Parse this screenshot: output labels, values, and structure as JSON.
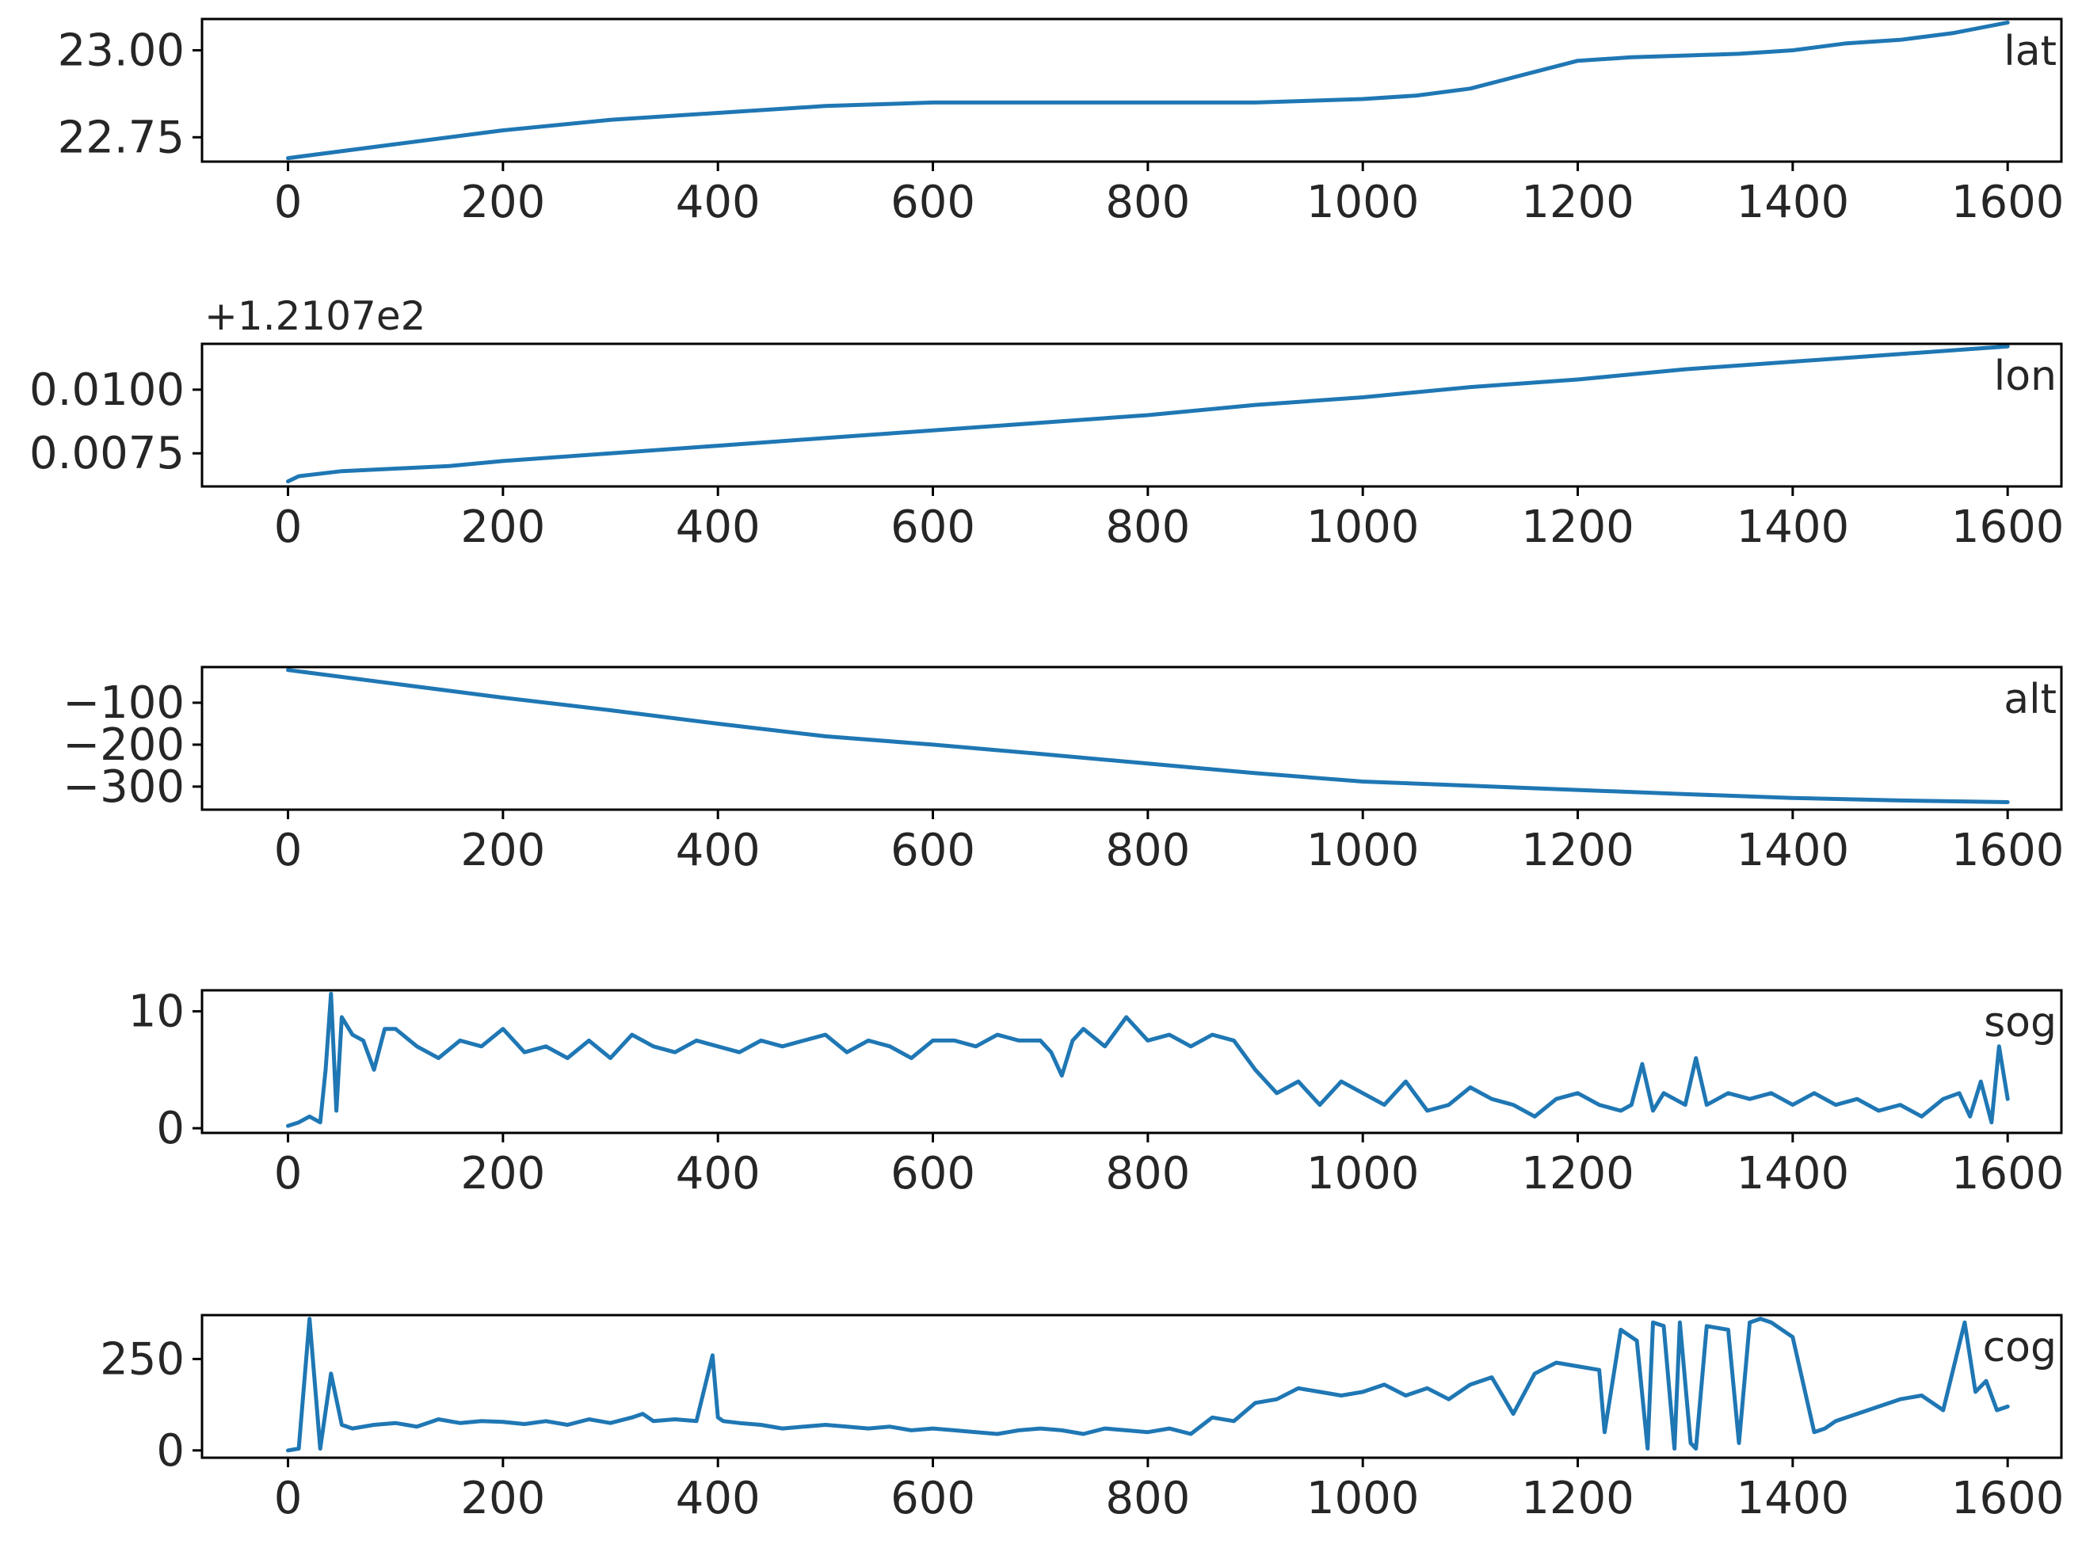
{
  "chart_data": [
    {
      "type": "line",
      "legend": "lat",
      "color": "#1f77b4",
      "xlim": [
        -80,
        1650
      ],
      "ylim": [
        22.68,
        23.09
      ],
      "xticks": [
        0,
        200,
        400,
        600,
        800,
        1000,
        1200,
        1400,
        1600
      ],
      "xtick_labels": [
        "0",
        "200",
        "400",
        "600",
        "800",
        "1000",
        "1200",
        "1400",
        "1600"
      ],
      "yticks": [
        22.75,
        23.0
      ],
      "ytick_labels": [
        "22.75",
        "23.00"
      ],
      "offset_text": "",
      "x": [
        0,
        100,
        200,
        300,
        400,
        500,
        600,
        700,
        800,
        900,
        1000,
        1050,
        1100,
        1150,
        1200,
        1250,
        1300,
        1350,
        1400,
        1450,
        1500,
        1550,
        1600
      ],
      "y": [
        22.69,
        22.73,
        22.77,
        22.8,
        22.82,
        22.84,
        22.85,
        22.85,
        22.85,
        22.85,
        22.86,
        22.87,
        22.89,
        22.93,
        22.97,
        22.98,
        22.985,
        22.99,
        23.0,
        23.02,
        23.03,
        23.05,
        23.08
      ]
    },
    {
      "type": "line",
      "legend": "lon",
      "color": "#1f77b4",
      "xlim": [
        -80,
        1650
      ],
      "ylim": [
        0.0062,
        0.0118
      ],
      "xticks": [
        0,
        200,
        400,
        600,
        800,
        1000,
        1200,
        1400,
        1600
      ],
      "xtick_labels": [
        "0",
        "200",
        "400",
        "600",
        "800",
        "1000",
        "1200",
        "1400",
        "1600"
      ],
      "yticks": [
        0.0075,
        0.01
      ],
      "ytick_labels": [
        "0.0075",
        "0.0100"
      ],
      "offset_text": "+1.2107e2",
      "x": [
        0,
        10,
        50,
        100,
        150,
        200,
        300,
        400,
        500,
        600,
        700,
        800,
        900,
        1000,
        1100,
        1200,
        1300,
        1400,
        1500,
        1600
      ],
      "y": [
        0.0064,
        0.0066,
        0.0068,
        0.0069,
        0.007,
        0.0072,
        0.0075,
        0.0078,
        0.0081,
        0.0084,
        0.0087,
        0.009,
        0.0094,
        0.0097,
        0.0101,
        0.0104,
        0.0108,
        0.0111,
        0.0114,
        0.0117
      ]
    },
    {
      "type": "line",
      "legend": "alt",
      "color": "#1f77b4",
      "xlim": [
        -80,
        1650
      ],
      "ylim": [
        -355,
        -15
      ],
      "xticks": [
        0,
        200,
        400,
        600,
        800,
        1000,
        1200,
        1400,
        1600
      ],
      "xtick_labels": [
        "0",
        "200",
        "400",
        "600",
        "800",
        "1000",
        "1200",
        "1400",
        "1600"
      ],
      "yticks": [
        -300,
        -200,
        -100
      ],
      "ytick_labels": [
        "−300",
        "−200",
        "−100"
      ],
      "offset_text": "",
      "x": [
        0,
        100,
        200,
        300,
        400,
        500,
        600,
        700,
        800,
        900,
        1000,
        1100,
        1200,
        1300,
        1400,
        1500,
        1600
      ],
      "y": [
        -22,
        -55,
        -88,
        -118,
        -150,
        -180,
        -200,
        -222,
        -245,
        -268,
        -288,
        -298,
        -308,
        -318,
        -327,
        -333,
        -337
      ]
    },
    {
      "type": "line",
      "legend": "sog",
      "color": "#1f77b4",
      "xlim": [
        -80,
        1650
      ],
      "ylim": [
        -0.4,
        11.8
      ],
      "xticks": [
        0,
        200,
        400,
        600,
        800,
        1000,
        1200,
        1400,
        1600
      ],
      "xtick_labels": [
        "0",
        "200",
        "400",
        "600",
        "800",
        "1000",
        "1200",
        "1400",
        "1600"
      ],
      "yticks": [
        0,
        10
      ],
      "ytick_labels": [
        "0",
        "10"
      ],
      "offset_text": "",
      "x": [
        0,
        10,
        20,
        30,
        35,
        40,
        45,
        50,
        60,
        70,
        80,
        90,
        100,
        120,
        140,
        160,
        180,
        200,
        220,
        240,
        260,
        280,
        300,
        320,
        340,
        360,
        380,
        400,
        420,
        440,
        460,
        480,
        500,
        520,
        540,
        560,
        580,
        600,
        620,
        640,
        660,
        680,
        700,
        710,
        720,
        730,
        740,
        760,
        780,
        800,
        820,
        840,
        860,
        880,
        900,
        920,
        940,
        960,
        980,
        1000,
        1020,
        1040,
        1060,
        1080,
        1100,
        1120,
        1140,
        1160,
        1180,
        1200,
        1220,
        1240,
        1250,
        1260,
        1270,
        1280,
        1300,
        1310,
        1320,
        1330,
        1340,
        1360,
        1380,
        1400,
        1420,
        1440,
        1460,
        1480,
        1500,
        1520,
        1540,
        1555,
        1565,
        1575,
        1585,
        1592,
        1600
      ],
      "y": [
        0.2,
        0.5,
        1.0,
        0.5,
        5.0,
        11.5,
        1.5,
        9.5,
        8.0,
        7.5,
        5.0,
        8.5,
        8.5,
        7.0,
        6.0,
        7.5,
        7.0,
        8.5,
        6.5,
        7.0,
        6.0,
        7.5,
        6.0,
        8.0,
        7.0,
        6.5,
        7.5,
        7.0,
        6.5,
        7.5,
        7.0,
        7.5,
        8.0,
        6.5,
        7.5,
        7.0,
        6.0,
        7.5,
        7.5,
        7.0,
        8.0,
        7.5,
        7.5,
        6.5,
        4.5,
        7.5,
        8.5,
        7.0,
        9.5,
        7.5,
        8.0,
        7.0,
        8.0,
        7.5,
        5.0,
        3.0,
        4.0,
        2.0,
        4.0,
        3.0,
        2.0,
        4.0,
        1.5,
        2.0,
        3.5,
        2.5,
        2.0,
        1.0,
        2.5,
        3.0,
        2.0,
        1.5,
        2.0,
        5.5,
        1.5,
        3.0,
        2.0,
        6.0,
        2.0,
        2.5,
        3.0,
        2.5,
        3.0,
        2.0,
        3.0,
        2.0,
        2.5,
        1.5,
        2.0,
        1.0,
        2.5,
        3.0,
        1.0,
        4.0,
        0.5,
        7.0,
        2.5
      ]
    },
    {
      "type": "line",
      "legend": "cog",
      "color": "#1f77b4",
      "xlim": [
        -80,
        1650
      ],
      "ylim": [
        -20,
        370
      ],
      "xticks": [
        0,
        200,
        400,
        600,
        800,
        1000,
        1200,
        1400,
        1600
      ],
      "xtick_labels": [
        "0",
        "200",
        "400",
        "600",
        "800",
        "1000",
        "1200",
        "1400",
        "1600"
      ],
      "yticks": [
        0,
        250
      ],
      "ytick_labels": [
        "0",
        "250"
      ],
      "offset_text": "",
      "x": [
        0,
        10,
        20,
        30,
        40,
        50,
        60,
        80,
        100,
        120,
        140,
        160,
        180,
        200,
        220,
        240,
        260,
        280,
        300,
        320,
        330,
        340,
        360,
        380,
        390,
        395,
        400,
        405,
        420,
        440,
        460,
        480,
        500,
        520,
        540,
        560,
        580,
        600,
        620,
        640,
        660,
        680,
        700,
        720,
        740,
        760,
        780,
        800,
        820,
        840,
        860,
        880,
        900,
        920,
        940,
        960,
        980,
        1000,
        1020,
        1040,
        1060,
        1080,
        1100,
        1120,
        1140,
        1160,
        1180,
        1200,
        1220,
        1225,
        1240,
        1255,
        1265,
        1270,
        1280,
        1290,
        1295,
        1305,
        1310,
        1320,
        1340,
        1350,
        1360,
        1370,
        1380,
        1400,
        1420,
        1430,
        1440,
        1460,
        1480,
        1500,
        1520,
        1540,
        1560,
        1570,
        1580,
        1590,
        1600
      ],
      "y": [
        0,
        5,
        360,
        5,
        210,
        70,
        60,
        70,
        75,
        65,
        85,
        75,
        80,
        78,
        72,
        80,
        70,
        85,
        75,
        90,
        100,
        80,
        85,
        80,
        200,
        260,
        90,
        80,
        75,
        70,
        60,
        65,
        70,
        65,
        60,
        65,
        55,
        60,
        55,
        50,
        45,
        55,
        60,
        55,
        45,
        60,
        55,
        50,
        60,
        45,
        90,
        80,
        130,
        140,
        170,
        160,
        150,
        160,
        180,
        150,
        170,
        140,
        180,
        200,
        100,
        210,
        240,
        230,
        220,
        50,
        330,
        300,
        5,
        350,
        340,
        5,
        350,
        20,
        5,
        340,
        330,
        20,
        350,
        360,
        350,
        310,
        50,
        60,
        80,
        100,
        120,
        140,
        150,
        110,
        350,
        160,
        190,
        110,
        120
      ]
    }
  ]
}
